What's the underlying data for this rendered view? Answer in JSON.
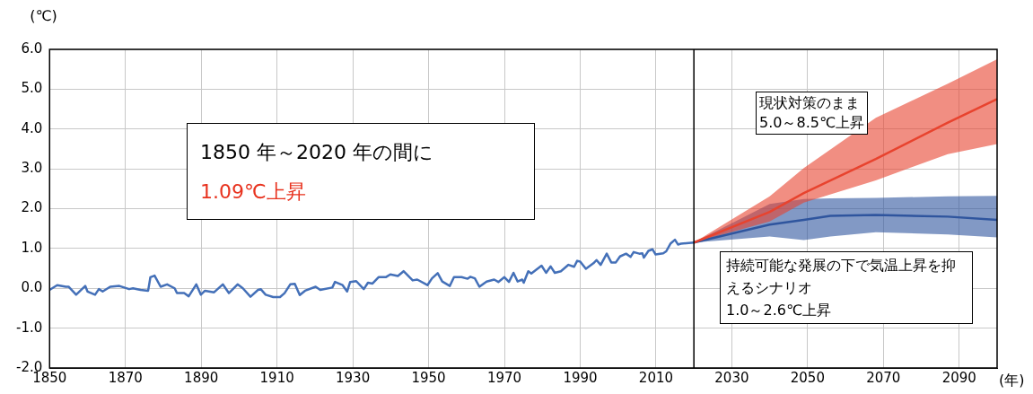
{
  "chart_data": {
    "type": "line",
    "ylabel": "(℃)",
    "xlabel": "(年)",
    "xlim": [
      1850,
      2100
    ],
    "xticks": [
      1850,
      1870,
      1890,
      1910,
      1930,
      1950,
      1970,
      1990,
      2010,
      2030,
      2050,
      2070,
      2090
    ],
    "ylim": [
      -2,
      6
    ],
    "yticks": [
      {
        "value": -2,
        "label": "-2.0"
      },
      {
        "value": -1,
        "label": "-1.0"
      },
      {
        "value": 0,
        "label": "0.0"
      },
      {
        "value": 1,
        "label": "1.0"
      },
      {
        "value": 2,
        "label": "2.0"
      },
      {
        "value": 3,
        "label": "3.0"
      },
      {
        "value": 4,
        "label": "4.0"
      },
      {
        "value": 5,
        "label": "5.0"
      },
      {
        "value": 6,
        "label": "6.0"
      }
    ],
    "grid": true,
    "legend": false,
    "marker": "none",
    "line_style": "solid",
    "ref_lines": [
      {
        "axis": "x",
        "value": 2020,
        "color": "#000000"
      }
    ],
    "annotations": [
      "1850 年～2020 年の間に",
      "1.09℃上昇",
      "現状対策のまま",
      "5.0～8.5℃上昇",
      "持続可能な発展の下で気温上昇を抑えるシナリオ",
      "1.0～2.6℃上昇"
    ],
    "series": [
      {
        "color": "#4470b8",
        "x": [
          1850,
          1852,
          1854.3,
          1855,
          1857,
          1859.4,
          1860,
          1862,
          1863,
          1864,
          1866,
          1868.4,
          1871,
          1872,
          1874,
          1876,
          1876.6,
          1877.7,
          1879.3,
          1881,
          1883,
          1883.6,
          1885.5,
          1886.7,
          1888.7,
          1889.9,
          1891,
          1893.4,
          1895.7,
          1897.3,
          1899.6,
          1901,
          1903,
          1905,
          1905.7,
          1907,
          1909,
          1910.8,
          1912,
          1913.5,
          1914.7,
          1916,
          1917.4,
          1920.2,
          1921.4,
          1924.6,
          1925.3,
          1927.3,
          1928.5,
          1929.3,
          1930.9,
          1932.9,
          1934,
          1935.2,
          1936.8,
          1938.7,
          1939.9,
          1941.9,
          1943.4,
          1945.8,
          1947,
          1949.7,
          1950.9,
          1952.4,
          1953.6,
          1955.6,
          1956.7,
          1958.7,
          1960.3,
          1961,
          1962.2,
          1963.4,
          1965.3,
          1967.3,
          1968.4,
          1970,
          1971.2,
          1972.4,
          1973.5,
          1974.7,
          1975.1,
          1976.3,
          1977.1,
          1979.8,
          1981,
          1982.2,
          1983.3,
          1984.9,
          1986.9,
          1988.4,
          1989.2,
          1990,
          1991.5,
          1993.5,
          1994.3,
          1995.4,
          1997,
          1998.2,
          1999.4,
          2000.5,
          2002.1,
          2003.3,
          2004.1,
          2005.6,
          2006.4,
          2006.8,
          2008,
          2009.1,
          2009.9,
          2011.9,
          2012.7,
          2013.8,
          2015,
          2015.8,
          2016.6,
          2020
        ],
        "values": [
          -0.04,
          0.08,
          0.04,
          0.04,
          -0.16,
          0.06,
          -0.08,
          -0.16,
          -0.02,
          -0.08,
          0.04,
          0.06,
          -0.02,
          0,
          -0.04,
          -0.06,
          0.28,
          0.32,
          0.04,
          0.1,
          0,
          -0.12,
          -0.12,
          -0.2,
          0.1,
          -0.16,
          -0.06,
          -0.1,
          0.1,
          -0.12,
          0.1,
          0,
          -0.21,
          -0.04,
          -0.02,
          -0.16,
          -0.22,
          -0.22,
          -0.12,
          0.1,
          0.11,
          -0.17,
          -0.06,
          0.04,
          -0.04,
          0.02,
          0.16,
          0.08,
          -0.08,
          0.16,
          0.18,
          -0.02,
          0.14,
          0.12,
          0.28,
          0.28,
          0.35,
          0.31,
          0.43,
          0.2,
          0.22,
          0.08,
          0.25,
          0.38,
          0.17,
          0.06,
          0.28,
          0.28,
          0.24,
          0.29,
          0.25,
          0.04,
          0.17,
          0.22,
          0.16,
          0.28,
          0.16,
          0.39,
          0.17,
          0.22,
          0.14,
          0.43,
          0.37,
          0.57,
          0.39,
          0.55,
          0.39,
          0.43,
          0.59,
          0.54,
          0.69,
          0.67,
          0.49,
          0.63,
          0.71,
          0.59,
          0.87,
          0.65,
          0.65,
          0.8,
          0.87,
          0.79,
          0.91,
          0.87,
          0.88,
          0.77,
          0.94,
          0.98,
          0.85,
          0.88,
          0.93,
          1.12,
          1.22,
          1.1,
          1.12,
          1.15
        ]
      },
      {
        "color": "#e8432e",
        "x": [
          2020,
          2040,
          2049,
          2068,
          2087,
          2100
        ],
        "values": [
          1.15,
          1.92,
          2.39,
          3.25,
          4.16,
          4.75
        ],
        "lower": [
          1.15,
          1.68,
          2.15,
          2.71,
          3.37,
          3.62
        ],
        "upper": [
          1.15,
          2.31,
          3.02,
          4.28,
          5.14,
          5.75
        ]
      },
      {
        "color": "#2f559e",
        "x": [
          2020,
          2040,
          2049,
          2056,
          2068,
          2087,
          2100
        ],
        "values": [
          1.15,
          1.6,
          1.72,
          1.82,
          1.84,
          1.8,
          1.72
        ],
        "lower": [
          1.15,
          1.3,
          1.21,
          1.3,
          1.41,
          1.35,
          1.28
        ],
        "upper": [
          1.15,
          2.12,
          2.24,
          2.26,
          2.27,
          2.31,
          2.32
        ]
      }
    ]
  }
}
